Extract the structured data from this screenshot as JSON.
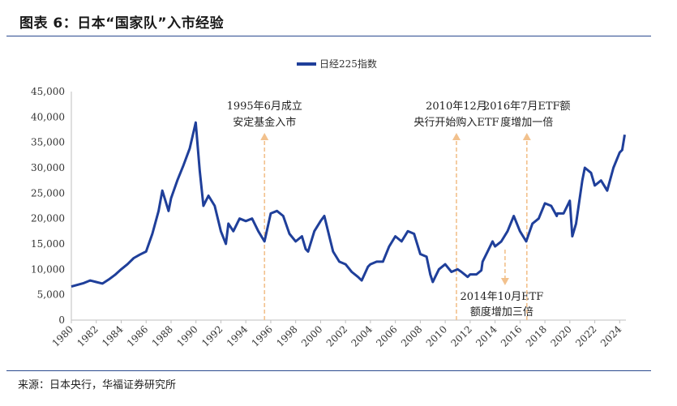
{
  "header": {
    "title": "图表 6：日本“国家队”入市经验"
  },
  "footer": {
    "source": "来源：日本央行，华福证券研究所"
  },
  "colors": {
    "line": "#1f3f9a",
    "arrow": "#f2c18d",
    "rule": "#2b4a8f",
    "axis": "#bfbfbf",
    "text": "#333333"
  },
  "chart_data": {
    "type": "line",
    "legend": "日经225指数",
    "legend_position": "top-center",
    "grid": false,
    "xlim": [
      1980,
      2024.5
    ],
    "ylim": [
      0,
      45000
    ],
    "x_ticks": [
      "1980",
      "1982",
      "1984",
      "1986",
      "1988",
      "1990",
      "1992",
      "1994",
      "1996",
      "1998",
      "2000",
      "2002",
      "2004",
      "2006",
      "2008",
      "2010",
      "2012",
      "2014",
      "2016",
      "2018",
      "2020",
      "2022",
      "2024"
    ],
    "y_ticks": [
      "0",
      "5,000",
      "10,000",
      "15,000",
      "20,000",
      "25,000",
      "30,000",
      "35,000",
      "40,000",
      "45,000"
    ],
    "series": [
      {
        "name": "日经225指数",
        "x": [
          1980,
          1980.5,
          1981,
          1981.5,
          1982,
          1982.5,
          1983,
          1983.5,
          1984,
          1984.5,
          1985,
          1985.5,
          1986,
          1986.5,
          1987,
          1987.3,
          1987.8,
          1988,
          1988.5,
          1989,
          1989.5,
          1989.98,
          1990.3,
          1990.6,
          1990.8,
          1991,
          1991.5,
          1992,
          1992.4,
          1992.6,
          1993,
          1993.5,
          1994,
          1994.5,
          1995,
          1995.5,
          1996,
          1996.5,
          1997,
          1997.5,
          1998,
          1998.5,
          1998.8,
          1999,
          1999.5,
          2000,
          2000.3,
          2000.8,
          2001,
          2001.5,
          2002,
          2002.5,
          2003,
          2003.3,
          2003.8,
          2004,
          2004.5,
          2005,
          2005.5,
          2006,
          2006.5,
          2007,
          2007.5,
          2008,
          2008.5,
          2008.8,
          2009,
          2009.2,
          2009.5,
          2010,
          2010.5,
          2011,
          2011.3,
          2011.8,
          2012,
          2012.5,
          2012.9,
          2013,
          2013.4,
          2013.8,
          2014,
          2014.5,
          2015,
          2015.5,
          2016,
          2016.5,
          2017,
          2017.5,
          2018,
          2018.5,
          2018.95,
          2019,
          2019.5,
          2020,
          2020.2,
          2020.5,
          2021,
          2021.2,
          2021.7,
          2022,
          2022.5,
          2023,
          2023.5,
          2024,
          2024.2,
          2024.4
        ],
        "values": [
          6600,
          6950,
          7300,
          7800,
          7500,
          7200,
          8000,
          8900,
          10000,
          11000,
          12200,
          12900,
          13500,
          17000,
          21500,
          25500,
          21500,
          24000,
          27500,
          30500,
          33800,
          38900,
          29500,
          22500,
          23500,
          24500,
          22500,
          17500,
          15000,
          19000,
          17500,
          20000,
          19500,
          20000,
          17500,
          15500,
          21000,
          21500,
          20500,
          17000,
          15500,
          16500,
          14000,
          13500,
          17500,
          19500,
          20500,
          15500,
          13500,
          11500,
          11000,
          9500,
          8500,
          7800,
          10500,
          11000,
          11500,
          11500,
          14500,
          16500,
          15500,
          17500,
          17000,
          13000,
          12500,
          9000,
          7500,
          8500,
          10000,
          11000,
          9500,
          10000,
          9500,
          8500,
          9000,
          9000,
          9800,
          11500,
          13500,
          15500,
          14500,
          15500,
          17500,
          20500,
          17500,
          15500,
          19000,
          20000,
          23000,
          22500,
          20500,
          21000,
          21000,
          23500,
          16500,
          19000,
          27500,
          30000,
          29000,
          26500,
          27500,
          25500,
          30000,
          33000,
          33500,
          36500
        ]
      }
    ],
    "annotations": [
      {
        "label": "1995年6月成立\n安定基金入市",
        "x": 1995.5,
        "direction": "up"
      },
      {
        "label": "2010年12月\n央行开始购入ETF",
        "x": 2010.9,
        "direction": "up"
      },
      {
        "label": "2014年10月ETF\n额度增加三倍",
        "x": 2014.8,
        "direction": "down"
      },
      {
        "label": "2016年7月ETF额\n度增加一倍",
        "x": 2016.55,
        "direction": "up"
      }
    ]
  }
}
